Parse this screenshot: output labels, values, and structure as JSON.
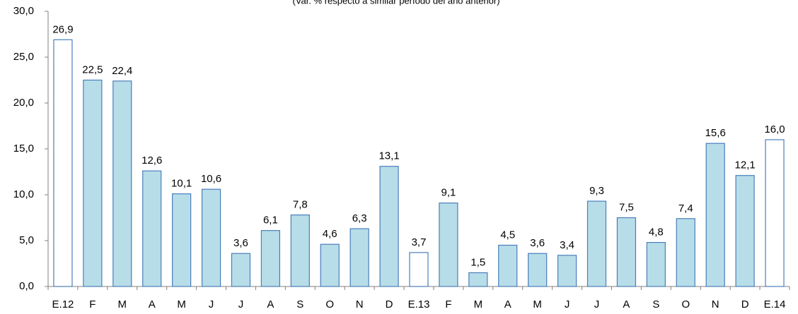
{
  "chart_data": {
    "type": "bar",
    "subtitle": "(Var. % respecto a similar período del año anterior)",
    "categories": [
      "E.12",
      "F",
      "M",
      "A",
      "M",
      "J",
      "J",
      "A",
      "S",
      "O",
      "N",
      "D",
      "E.13",
      "F",
      "M",
      "A",
      "M",
      "J",
      "J",
      "A",
      "S",
      "O",
      "N",
      "D",
      "E.14"
    ],
    "values": [
      26.9,
      22.5,
      22.4,
      12.6,
      10.1,
      10.6,
      3.6,
      6.1,
      7.8,
      4.6,
      6.3,
      13.1,
      3.7,
      9.1,
      1.5,
      4.5,
      3.6,
      3.4,
      9.3,
      7.5,
      4.8,
      7.4,
      15.6,
      12.1,
      16.0
    ],
    "value_labels": [
      "26,9",
      "22,5",
      "22,4",
      "12,6",
      "10,1",
      "10,6",
      "3,6",
      "6,1",
      "7,8",
      "4,6",
      "6,3",
      "13,1",
      "3,7",
      "9,1",
      "1,5",
      "4,5",
      "3,6",
      "3,4",
      "9,3",
      "7,5",
      "4,8",
      "7,4",
      "15,6",
      "12,1",
      "16,0"
    ],
    "colors": [
      "#ffffff",
      "#b7dde8",
      "#b7dde8",
      "#b7dde8",
      "#b7dde8",
      "#b7dde8",
      "#b7dde8",
      "#b7dde8",
      "#b7dde8",
      "#b7dde8",
      "#b7dde8",
      "#b7dde8",
      "#ffffff",
      "#b7dde8",
      "#b7dde8",
      "#b7dde8",
      "#b7dde8",
      "#b7dde8",
      "#b7dde8",
      "#b7dde8",
      "#b7dde8",
      "#b7dde8",
      "#b7dde8",
      "#b7dde8",
      "#ffffff"
    ],
    "border_color": "#4a7ebb",
    "ylim": [
      0,
      30
    ],
    "yticks": [
      {
        "value": 0,
        "label": "0,0"
      },
      {
        "value": 5,
        "label": "5,0"
      },
      {
        "value": 10,
        "label": "10,0"
      },
      {
        "value": 15,
        "label": "15,0"
      },
      {
        "value": 20,
        "label": "20,0"
      },
      {
        "value": 25,
        "label": "25,0"
      },
      {
        "value": 30,
        "label": "30,0"
      }
    ],
    "grid": false
  }
}
